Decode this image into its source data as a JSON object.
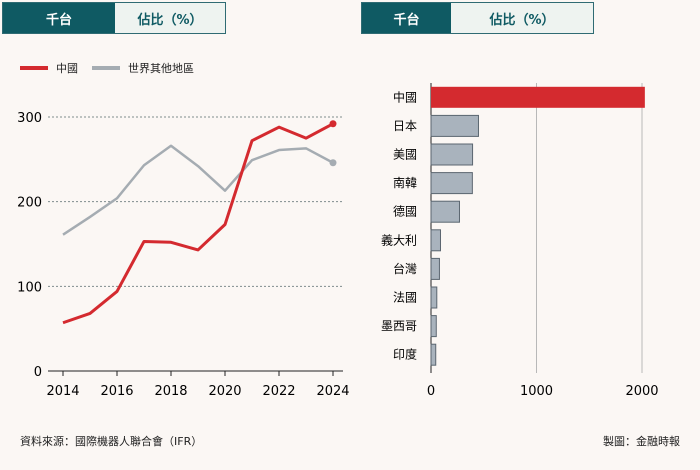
{
  "tabs_left": {
    "active": "千台",
    "inactive": "佔比（%）"
  },
  "tabs_right": {
    "active": "千台",
    "inactive": "佔比（%）"
  },
  "source": "資料來源：國際機器人聯合會（IFR）",
  "credit": "製圖：金融時報",
  "colors": {
    "china": "#d42a2f",
    "world": "#a5acb2",
    "tab_bg": "#0f5a63",
    "bar_fill": "#a9b3bd"
  },
  "chart_data": [
    {
      "type": "line",
      "x": [
        2014,
        2015,
        2016,
        2017,
        2018,
        2019,
        2020,
        2021,
        2022,
        2023,
        2024
      ],
      "series": [
        {
          "name": "中國",
          "values": [
            57,
            68,
            94,
            153,
            152,
            143,
            173,
            272,
            288,
            275,
            292
          ]
        },
        {
          "name": "世界其他地區",
          "values": [
            161,
            182,
            204,
            243,
            266,
            242,
            213,
            249,
            261,
            263,
            246
          ]
        }
      ],
      "xticks": [
        2014,
        2016,
        2018,
        2020,
        2022,
        2024
      ],
      "yticks": [
        0,
        100,
        200,
        300
      ],
      "xlim": [
        2014,
        2024
      ],
      "ylim": [
        0,
        300
      ],
      "grid": true,
      "legend": "top-left"
    },
    {
      "type": "bar",
      "orientation": "horizontal",
      "categories": [
        "中國",
        "日本",
        "美國",
        "南韓",
        "德國",
        "義大利",
        "台灣",
        "法國",
        "墨西哥",
        "印度"
      ],
      "values": [
        2027,
        450,
        394,
        392,
        270,
        90,
        80,
        55,
        50,
        45
      ],
      "xticks": [
        0,
        1000,
        2000
      ],
      "xlim": [
        0,
        2000
      ],
      "grid": true
    }
  ]
}
